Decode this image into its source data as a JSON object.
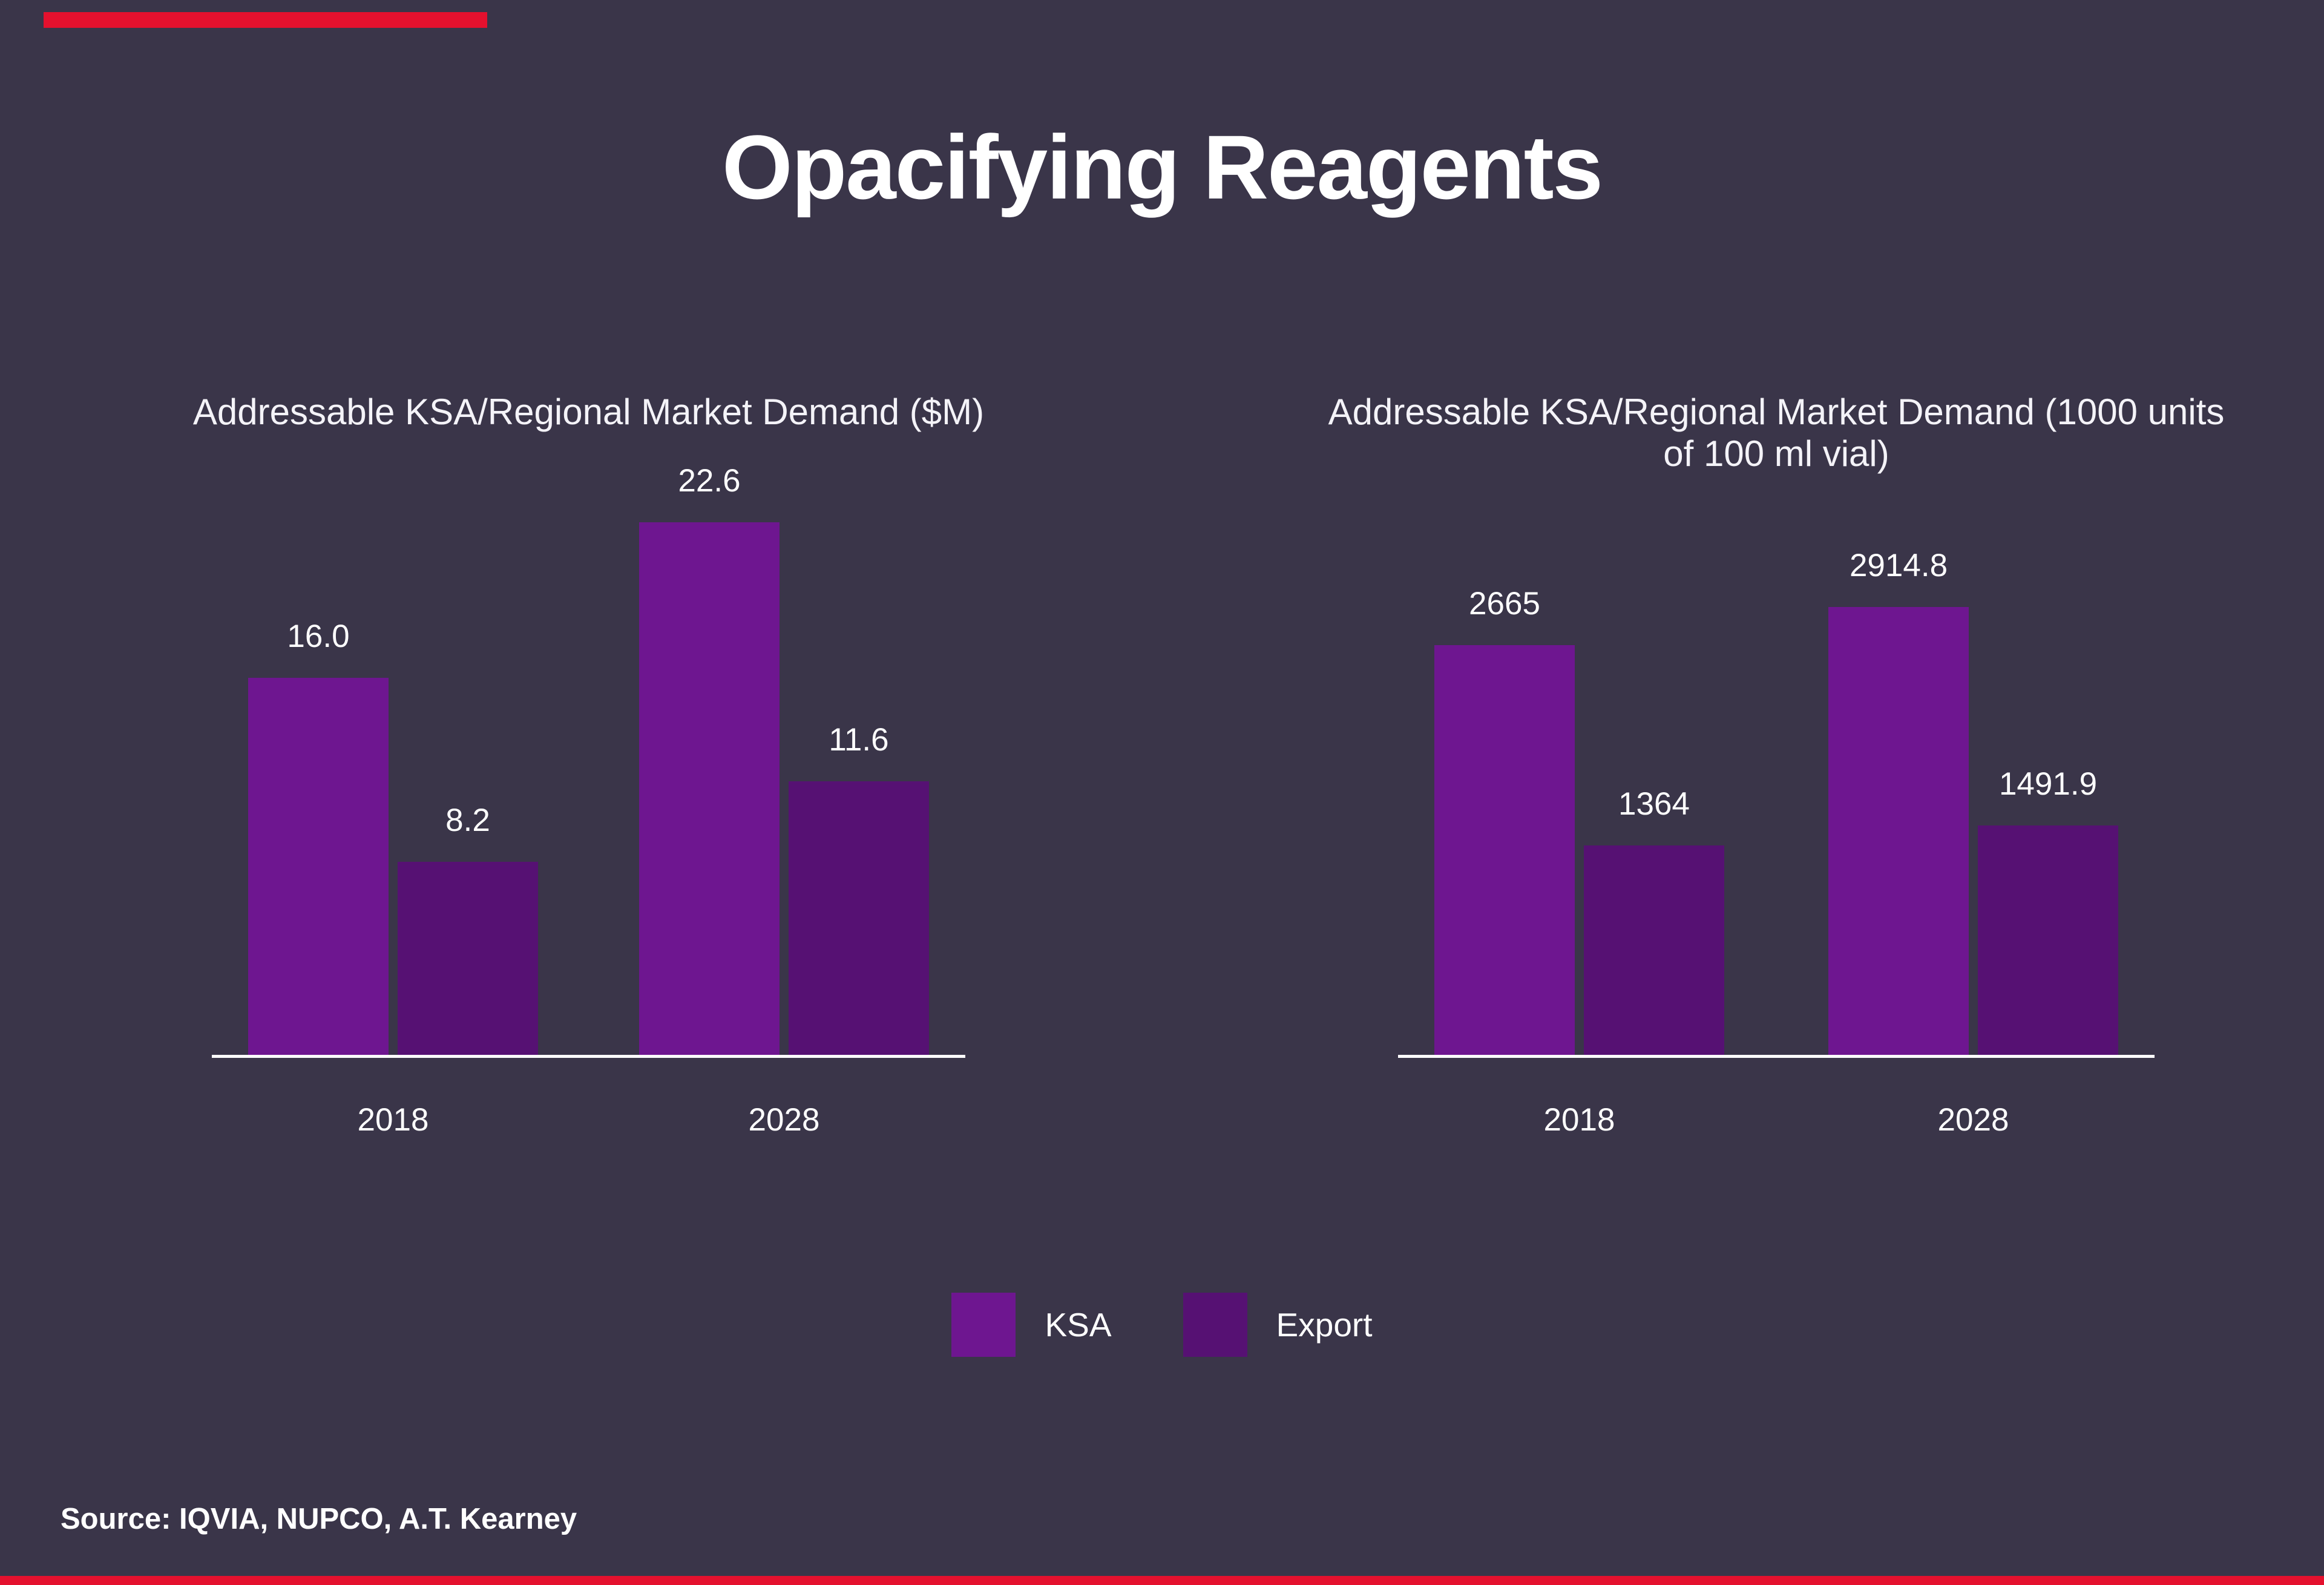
{
  "page": {
    "title": "Opacifying Reagents",
    "source_note": "Source: IQVIA, NUPCO, A.T. Kearney"
  },
  "colors": {
    "background": "#3A3549",
    "ksa_purple": "#6E1690",
    "export_purple": "#561173",
    "accent_red": "#E4112E",
    "text": "#FFFFFF",
    "axis_line": "#FFFFFF"
  },
  "legend": {
    "items": [
      {
        "label": "KSA",
        "color": "#6E1690"
      },
      {
        "label": "Export",
        "color": "#561173"
      }
    ]
  },
  "chart_data": [
    {
      "type": "bar",
      "title": "Addressable KSA/Regional Market Demand ($M)",
      "categories": [
        "2018",
        "2028"
      ],
      "series": [
        {
          "name": "KSA",
          "color": "#6E1690",
          "values": [
            16.0,
            22.6
          ],
          "labels": [
            "16.0",
            "22.6"
          ]
        },
        {
          "name": "Export",
          "color": "#561173",
          "values": [
            8.2,
            11.6
          ],
          "labels": [
            "8.2",
            "11.6"
          ]
        }
      ],
      "xlabel": "",
      "ylabel": "",
      "ylim": [
        0,
        22.6
      ],
      "grid": false,
      "data_labels": true,
      "legend_position": "shared-bottom-center"
    },
    {
      "type": "bar",
      "title": "Addressable KSA/Regional Market Demand (1000 units of 100 ml vial)",
      "categories": [
        "2018",
        "2028"
      ],
      "series": [
        {
          "name": "KSA",
          "color": "#6E1690",
          "values": [
            2665,
            2914.8
          ],
          "labels": [
            "2665",
            "2914.8"
          ]
        },
        {
          "name": "Export",
          "color": "#561173",
          "values": [
            1364,
            1491.9
          ],
          "labels": [
            "1364",
            "1491.9"
          ]
        }
      ],
      "xlabel": "",
      "ylabel": "",
      "ylim": [
        0,
        2914.8
      ],
      "grid": false,
      "data_labels": true,
      "legend_position": "shared-bottom-center"
    }
  ]
}
